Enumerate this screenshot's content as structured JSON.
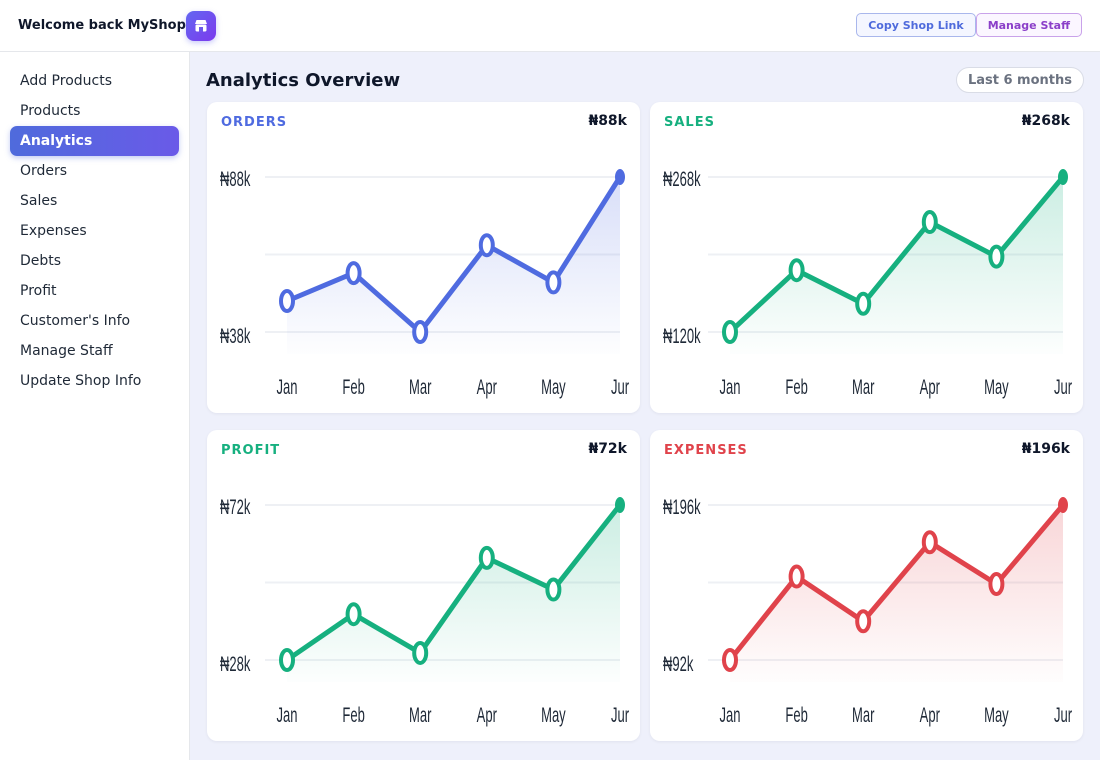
{
  "header": {
    "brand": "Welcome back MyShop",
    "copy_link_label": "Copy Shop Link",
    "manage_staff_label": "Manage Staff"
  },
  "sidebar": {
    "items": [
      {
        "label": "Add Products",
        "active": false
      },
      {
        "label": "Products",
        "active": false
      },
      {
        "label": "Analytics",
        "active": true
      },
      {
        "label": "Orders",
        "active": false
      },
      {
        "label": "Sales",
        "active": false
      },
      {
        "label": "Expenses",
        "active": false
      },
      {
        "label": "Debts",
        "active": false
      },
      {
        "label": "Profit",
        "active": false
      },
      {
        "label": "Customer's Info",
        "active": false
      },
      {
        "label": "Manage Staff",
        "active": false
      },
      {
        "label": "Update Shop Info",
        "active": false
      }
    ]
  },
  "main": {
    "title": "Analytics Overview",
    "range": "Last 6 months"
  },
  "cards": [
    {
      "title": "ORDERS",
      "total": "₦88k",
      "color": "#4f6be0"
    },
    {
      "title": "SALES",
      "total": "₦268k",
      "color": "#16b07f"
    },
    {
      "title": "PROFIT",
      "total": "₦72k",
      "color": "#16b07f"
    },
    {
      "title": "EXPENSES",
      "total": "₦196k",
      "color": "#e0434b"
    }
  ],
  "chart_data": [
    {
      "type": "line",
      "title": "ORDERS",
      "categories": [
        "Jan",
        "Feb",
        "Mar",
        "Apr",
        "May",
        "Jur"
      ],
      "values": [
        48,
        57,
        38,
        66,
        54,
        88
      ],
      "ytick_labels": [
        "₦88k",
        "₦38k"
      ],
      "ylim": [
        38,
        88
      ],
      "color": "#4f6be0"
    },
    {
      "type": "line",
      "title": "SALES",
      "categories": [
        "Jan",
        "Feb",
        "Mar",
        "Apr",
        "May",
        "Jur"
      ],
      "values": [
        120,
        179,
        147,
        225,
        192,
        268
      ],
      "ytick_labels": [
        "₦268k",
        "₦120k"
      ],
      "ylim": [
        120,
        268
      ],
      "color": "#16b07f"
    },
    {
      "type": "line",
      "title": "PROFIT",
      "categories": [
        "Jan",
        "Feb",
        "Mar",
        "Apr",
        "May",
        "Jur"
      ],
      "values": [
        28,
        41,
        30,
        57,
        48,
        72
      ],
      "ytick_labels": [
        "₦72k",
        "₦28k"
      ],
      "ylim": [
        28,
        72
      ],
      "color": "#16b07f"
    },
    {
      "type": "line",
      "title": "EXPENSES",
      "categories": [
        "Jan",
        "Feb",
        "Mar",
        "Apr",
        "May",
        "Jur"
      ],
      "values": [
        92,
        148,
        118,
        171,
        143,
        196
      ],
      "ytick_labels": [
        "₦196k",
        "₦92k"
      ],
      "ylim": [
        92,
        196
      ],
      "color": "#e0434b"
    }
  ]
}
